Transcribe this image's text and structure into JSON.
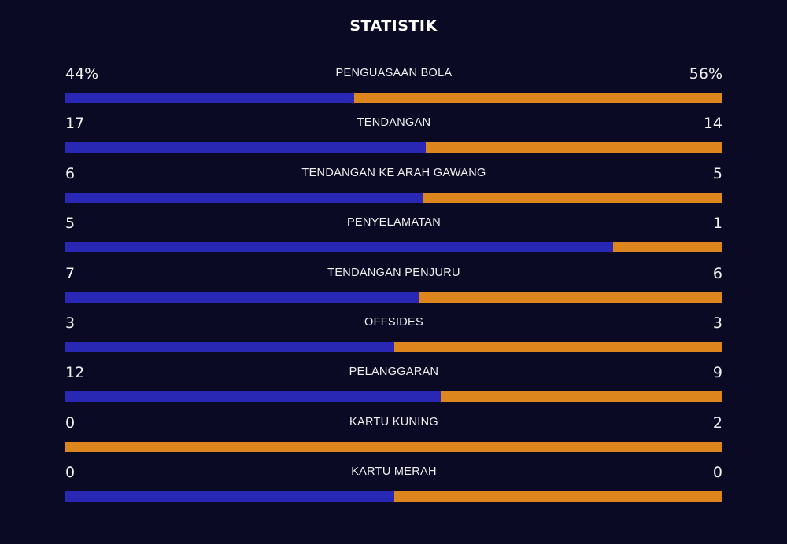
{
  "title": "STATISTIK",
  "colors": {
    "background": "#0a0a24",
    "home": "#2828b4",
    "away": "#de861e"
  },
  "stats": [
    {
      "label": "PENGUASAAN BOLA",
      "home": "44%",
      "away": "56%",
      "home_value": 44,
      "away_value": 56
    },
    {
      "label": "TENDANGAN",
      "home": "17",
      "away": "14",
      "home_value": 17,
      "away_value": 14
    },
    {
      "label": "TENDANGAN KE ARAH GAWANG",
      "home": "6",
      "away": "5",
      "home_value": 6,
      "away_value": 5
    },
    {
      "label": "PENYELAMATAN",
      "home": "5",
      "away": "1",
      "home_value": 5,
      "away_value": 1
    },
    {
      "label": "TENDANGAN PENJURU",
      "home": "7",
      "away": "6",
      "home_value": 7,
      "away_value": 6
    },
    {
      "label": "OFFSIDES",
      "home": "3",
      "away": "3",
      "home_value": 3,
      "away_value": 3
    },
    {
      "label": "PELANGGARAN",
      "home": "12",
      "away": "9",
      "home_value": 12,
      "away_value": 9
    },
    {
      "label": "KARTU KUNING",
      "home": "0",
      "away": "2",
      "home_value": 0,
      "away_value": 2
    },
    {
      "label": "KARTU MERAH",
      "home": "0",
      "away": "0",
      "home_value": 0,
      "away_value": 0
    }
  ]
}
